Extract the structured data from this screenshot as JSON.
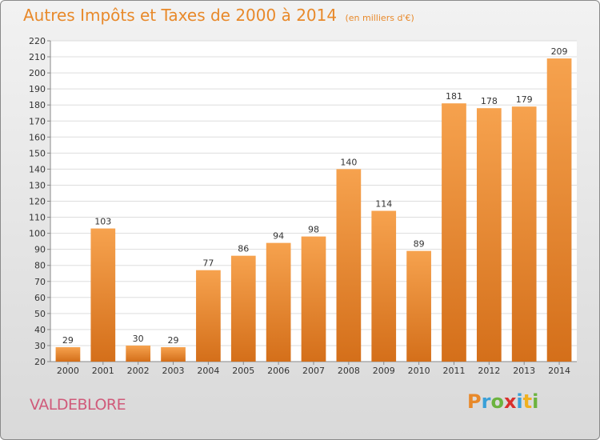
{
  "chart_data": {
    "type": "bar",
    "title": "Autres Impôts et Taxes de 2000 à 2014",
    "subtitle": "(en milliers d'€)",
    "categories": [
      "2000",
      "2001",
      "2002",
      "2003",
      "2004",
      "2005",
      "2006",
      "2007",
      "2008",
      "2009",
      "2010",
      "2011",
      "2012",
      "2013",
      "2014"
    ],
    "values": [
      29,
      103,
      30,
      29,
      77,
      86,
      94,
      98,
      140,
      114,
      89,
      181,
      178,
      179,
      209
    ],
    "ylim": [
      20,
      220
    ],
    "yticks": [
      20,
      30,
      40,
      50,
      60,
      70,
      80,
      90,
      100,
      110,
      120,
      130,
      140,
      150,
      160,
      170,
      180,
      190,
      200,
      210,
      220
    ],
    "grid": true,
    "bar_color": "#f0983c"
  },
  "location": "VALDEBLORE",
  "logo": {
    "letters": [
      "P",
      "r",
      "o",
      "x",
      "i",
      "t",
      "i"
    ],
    "colors": [
      "#e8892a",
      "#3aa0d8",
      "#6cb33f",
      "#d9302c",
      "#3aa0d8",
      "#f0b020",
      "#6cb33f"
    ]
  }
}
